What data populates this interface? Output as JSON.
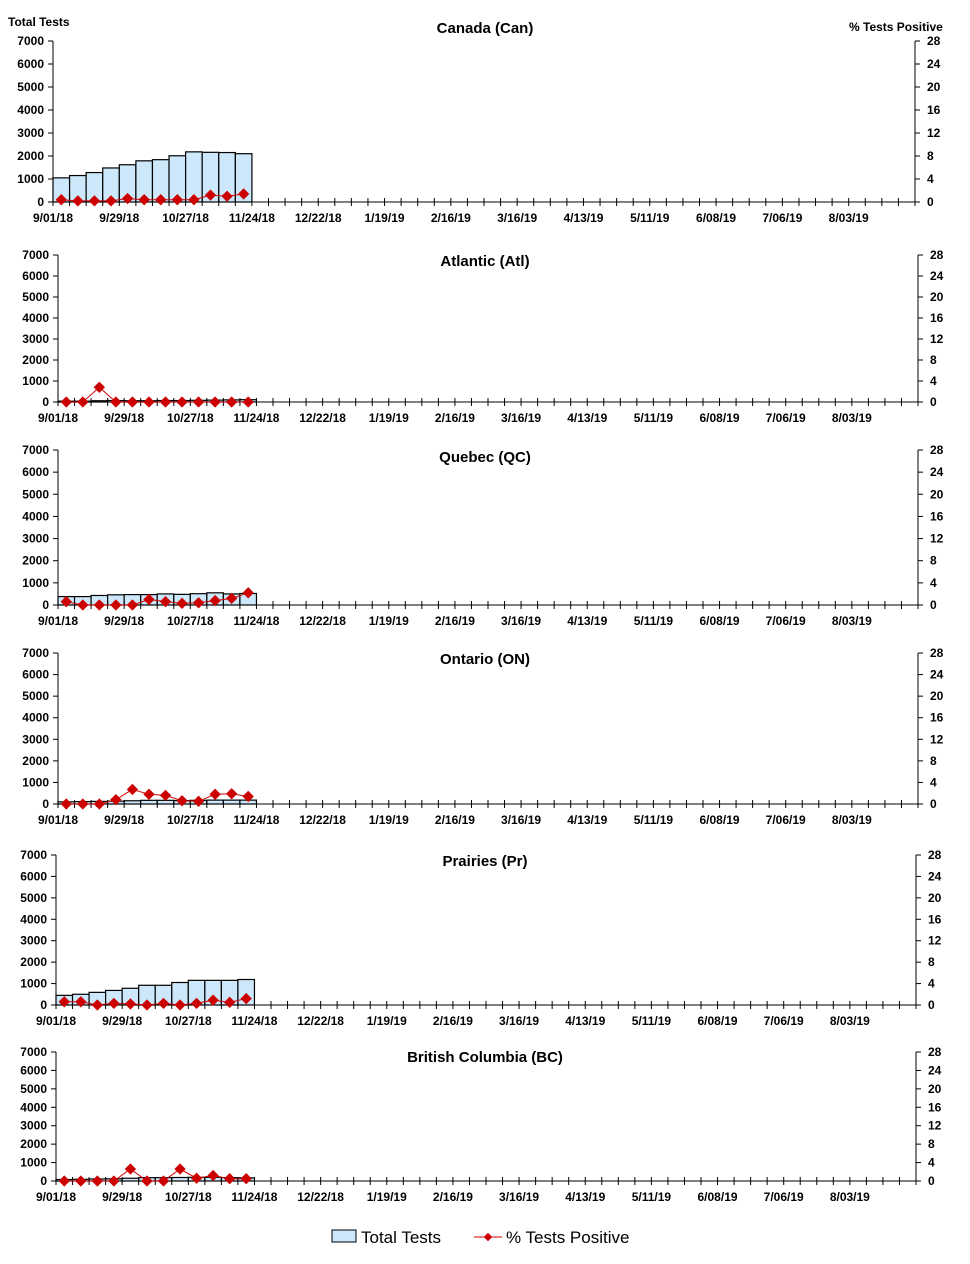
{
  "chart_data": {
    "type": "bar+line",
    "left_axis_label": "Total Tests",
    "right_axis_label": "% Tests Positive",
    "left_ylim": [
      0,
      7000
    ],
    "left_ticks": [
      "0",
      "1000",
      "2000",
      "3000",
      "4000",
      "5000",
      "6000",
      "7000"
    ],
    "right_ylim": [
      0,
      28
    ],
    "right_ticks": [
      "0",
      "4",
      "8",
      "12",
      "16",
      "20",
      "24",
      "28"
    ],
    "x_tick_labels": [
      "9/01/18",
      "9/29/18",
      "10/27/18",
      "11/24/18",
      "12/22/18",
      "1/19/19",
      "2/16/19",
      "3/16/19",
      "4/13/19",
      "5/11/19",
      "6/08/19",
      "7/06/19",
      "8/03/19"
    ],
    "weeks_total": 52,
    "legend": [
      "Total Tests",
      "% Tests Positive"
    ],
    "colors": {
      "bar_fill": "#cce8fa",
      "bar_stroke": "#000000",
      "line": "#cc0000"
    },
    "panels": [
      {
        "title": "Canada (Can)",
        "total_tests": [
          1050,
          1150,
          1280,
          1480,
          1620,
          1790,
          1840,
          2010,
          2180,
          2160,
          2150,
          2100
        ],
        "pct_positive": [
          0.4,
          0.2,
          0.2,
          0.2,
          0.6,
          0.4,
          0.4,
          0.4,
          0.4,
          1.2,
          1.0,
          1.4
        ]
      },
      {
        "title": "Atlantic (Atl)",
        "total_tests": [
          40,
          40,
          60,
          70,
          60,
          60,
          70,
          70,
          80,
          90,
          100,
          110
        ],
        "pct_positive": [
          0,
          0,
          2.8,
          0,
          0,
          0,
          0,
          0,
          0,
          0,
          0,
          0
        ]
      },
      {
        "title": "Quebec (QC)",
        "total_tests": [
          380,
          380,
          430,
          460,
          470,
          470,
          500,
          480,
          510,
          550,
          500,
          520
        ],
        "pct_positive": [
          0.6,
          0,
          0,
          0,
          0,
          1.0,
          0.6,
          0.3,
          0.4,
          0.8,
          1.2,
          2.2
        ]
      },
      {
        "title": "Ontario (ON)",
        "total_tests": [
          100,
          110,
          120,
          130,
          150,
          170,
          170,
          160,
          170,
          180,
          180,
          180
        ],
        "pct_positive": [
          0,
          0,
          0,
          0.8,
          2.7,
          1.8,
          1.6,
          0.6,
          0.5,
          1.8,
          1.9,
          1.4
        ]
      },
      {
        "title": "Prairies (Pr)",
        "total_tests": [
          450,
          500,
          590,
          680,
          780,
          920,
          920,
          1050,
          1150,
          1150,
          1150,
          1190
        ],
        "pct_positive": [
          0.6,
          0.6,
          0,
          0.3,
          0.2,
          0,
          0.3,
          0,
          0.3,
          0.9,
          0.5,
          1.2
        ]
      },
      {
        "title": "British Columbia (BC)",
        "total_tests": [
          80,
          90,
          110,
          120,
          150,
          180,
          180,
          190,
          200,
          200,
          180,
          170
        ],
        "pct_positive": [
          0,
          0,
          0,
          0,
          2.6,
          0,
          0,
          2.6,
          0.6,
          1.2,
          0.5,
          0.5
        ]
      }
    ]
  }
}
